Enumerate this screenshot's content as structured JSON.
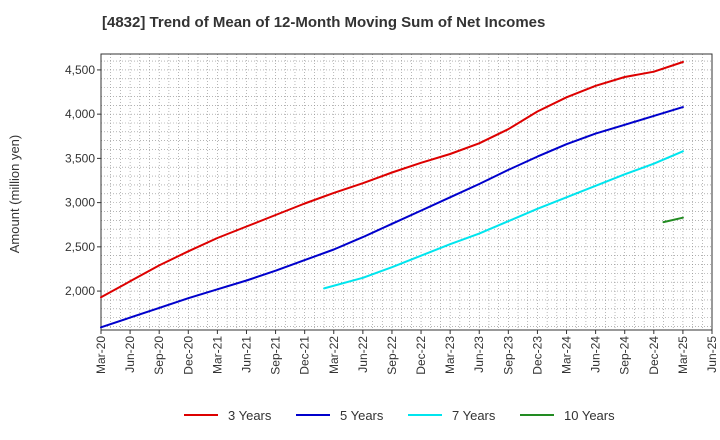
{
  "chart_data": {
    "type": "line",
    "title": "[4832]  Trend of Mean of 12-Month Moving Sum of Net Incomes",
    "ylabel": "Amount (million yen)",
    "xlabel": "",
    "x_tick_labels": [
      "Mar-20",
      "Jun-20",
      "Sep-20",
      "Dec-20",
      "Mar-21",
      "Jun-21",
      "Sep-21",
      "Dec-21",
      "Mar-22",
      "Jun-22",
      "Sep-22",
      "Dec-22",
      "Mar-23",
      "Jun-23",
      "Sep-23",
      "Dec-23",
      "Mar-24",
      "Jun-24",
      "Sep-24",
      "Dec-24",
      "Mar-25",
      "Jun-25"
    ],
    "y_ticks": [
      2000,
      2500,
      3000,
      3500,
      4000,
      4500
    ],
    "y_tick_labels": [
      "2,000",
      "2,500",
      "3,000",
      "3,500",
      "4,000",
      "4,500"
    ],
    "ylim": [
      1560,
      4680
    ],
    "grid": true,
    "legend_position": "bottom",
    "series": [
      {
        "name": "3 Years",
        "color": "#dd0000",
        "x": [
          "Mar-20",
          "Jun-20",
          "Sep-20",
          "Dec-20",
          "Mar-21",
          "Jun-21",
          "Sep-21",
          "Dec-21",
          "Mar-22",
          "Jun-22",
          "Sep-22",
          "Dec-22",
          "Mar-23",
          "Jun-23",
          "Sep-23",
          "Dec-23",
          "Mar-24",
          "Jun-24",
          "Sep-24",
          "Dec-24",
          "Mar-25"
        ],
        "values": [
          1930,
          2110,
          2290,
          2450,
          2600,
          2730,
          2860,
          2990,
          3110,
          3220,
          3340,
          3450,
          3550,
          3670,
          3830,
          4030,
          4190,
          4320,
          4420,
          4480,
          4590
        ]
      },
      {
        "name": "5 Years",
        "color": "#0000cc",
        "x": [
          "Mar-20",
          "Jun-20",
          "Sep-20",
          "Dec-20",
          "Mar-21",
          "Jun-21",
          "Sep-21",
          "Dec-21",
          "Mar-22",
          "Jun-22",
          "Sep-22",
          "Dec-22",
          "Mar-23",
          "Jun-23",
          "Sep-23",
          "Dec-23",
          "Mar-24",
          "Jun-24",
          "Sep-24",
          "Dec-24",
          "Mar-25"
        ],
        "values": [
          1590,
          1700,
          1810,
          1920,
          2020,
          2120,
          2230,
          2350,
          2470,
          2610,
          2760,
          2910,
          3060,
          3210,
          3370,
          3520,
          3660,
          3780,
          3880,
          3980,
          4080
        ]
      },
      {
        "name": "7 Years",
        "color": "#00e5ee",
        "x": [
          "Feb-22",
          "Jun-22",
          "Sep-22",
          "Dec-22",
          "Mar-23",
          "Jun-23",
          "Sep-23",
          "Dec-23",
          "Mar-24",
          "Jun-24",
          "Sep-24",
          "Dec-24",
          "Mar-25"
        ],
        "values": [
          2030,
          2150,
          2270,
          2400,
          2530,
          2650,
          2790,
          2930,
          3060,
          3190,
          3320,
          3440,
          3580
        ]
      },
      {
        "name": "10 Years",
        "color": "#228b22",
        "x": [
          "Jan-25",
          "Mar-25"
        ],
        "values": [
          2780,
          2830
        ]
      }
    ]
  }
}
